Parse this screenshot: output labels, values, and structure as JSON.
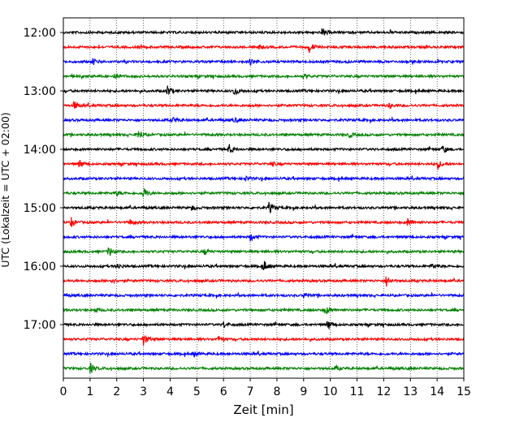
{
  "chart_data": {
    "type": "line",
    "subtype": "helicorder",
    "xlabel": "Zeit  [min]",
    "ylabel": "UTC (Lokalzeit = UTC + 02:00)",
    "xlim": [
      0,
      15
    ],
    "x_ticks": [
      "0",
      "1",
      "2",
      "3",
      "4",
      "5",
      "6",
      "7",
      "8",
      "9",
      "10",
      "11",
      "12",
      "13",
      "14",
      "15"
    ],
    "y_ticks": [
      "12:00",
      "13:00",
      "14:00",
      "15:00",
      "16:00",
      "17:00"
    ],
    "grid": "vertical-dotted",
    "trace_interval_min": 15,
    "traces": [
      {
        "start": "12:00",
        "color": "#000000",
        "events": [
          [
            9.7,
            0.8
          ]
        ]
      },
      {
        "start": "12:15",
        "color": "#ff0000",
        "events": [
          [
            9.2,
            1.0
          ],
          [
            7.3,
            0.5
          ]
        ]
      },
      {
        "start": "12:30",
        "color": "#0000ff",
        "events": [
          [
            1.1,
            0.6
          ],
          [
            7.0,
            0.5
          ]
        ]
      },
      {
        "start": "12:45",
        "color": "#008000",
        "events": [
          [
            1.9,
            0.4
          ],
          [
            9.0,
            0.4
          ]
        ]
      },
      {
        "start": "13:00",
        "color": "#000000",
        "events": [
          [
            3.9,
            1.0
          ],
          [
            6.4,
            0.9
          ]
        ]
      },
      {
        "start": "13:15",
        "color": "#ff0000",
        "events": [
          [
            0.4,
            0.8
          ],
          [
            12.2,
            0.5
          ]
        ]
      },
      {
        "start": "13:30",
        "color": "#0000ff",
        "events": [
          [
            4.1,
            0.5
          ],
          [
            6.4,
            0.4
          ]
        ]
      },
      {
        "start": "13:45",
        "color": "#008000",
        "events": [
          [
            2.8,
            1.0
          ],
          [
            10.7,
            0.5
          ]
        ]
      },
      {
        "start": "14:00",
        "color": "#000000",
        "events": [
          [
            6.2,
            0.9
          ],
          [
            14.2,
            0.7
          ]
        ]
      },
      {
        "start": "14:15",
        "color": "#ff0000",
        "events": [
          [
            0.6,
            0.7
          ],
          [
            14.0,
            0.9
          ],
          [
            7.8,
            0.4
          ]
        ]
      },
      {
        "start": "14:30",
        "color": "#0000ff",
        "events": [
          [
            6.8,
            0.4
          ]
        ]
      },
      {
        "start": "14:45",
        "color": "#008000",
        "events": [
          [
            3.0,
            1.0
          ],
          [
            2.0,
            0.4
          ]
        ]
      },
      {
        "start": "15:00",
        "color": "#000000",
        "events": [
          [
            7.7,
            1.0
          ],
          [
            4.8,
            0.5
          ]
        ]
      },
      {
        "start": "15:15",
        "color": "#ff0000",
        "events": [
          [
            0.3,
            0.8
          ],
          [
            12.9,
            0.8
          ],
          [
            2.5,
            0.5
          ]
        ]
      },
      {
        "start": "15:30",
        "color": "#0000ff",
        "events": [
          [
            7.0,
            0.6
          ]
        ]
      },
      {
        "start": "15:45",
        "color": "#008000",
        "events": [
          [
            1.7,
            1.0
          ],
          [
            5.3,
            0.5
          ]
        ]
      },
      {
        "start": "16:00",
        "color": "#000000",
        "events": [
          [
            7.5,
            1.0
          ],
          [
            2.0,
            0.6
          ],
          [
            13.8,
            0.5
          ]
        ]
      },
      {
        "start": "16:15",
        "color": "#ff0000",
        "events": [
          [
            12.1,
            1.0
          ],
          [
            1.8,
            0.4
          ]
        ]
      },
      {
        "start": "16:30",
        "color": "#0000ff",
        "events": [
          [
            9.0,
            0.5
          ]
        ]
      },
      {
        "start": "16:45",
        "color": "#008000",
        "events": [
          [
            9.8,
            0.8
          ],
          [
            1.2,
            0.4
          ]
        ]
      },
      {
        "start": "17:00",
        "color": "#000000",
        "events": [
          [
            9.9,
            1.0
          ],
          [
            6.0,
            0.5
          ]
        ]
      },
      {
        "start": "17:15",
        "color": "#ff0000",
        "events": [
          [
            3.0,
            1.0
          ],
          [
            5.8,
            0.5
          ]
        ]
      },
      {
        "start": "17:30",
        "color": "#0000ff",
        "events": [
          [
            4.9,
            0.4
          ]
        ]
      },
      {
        "start": "17:45",
        "color": "#008000",
        "events": [
          [
            1.0,
            0.9
          ],
          [
            10.2,
            0.4
          ]
        ]
      }
    ]
  }
}
